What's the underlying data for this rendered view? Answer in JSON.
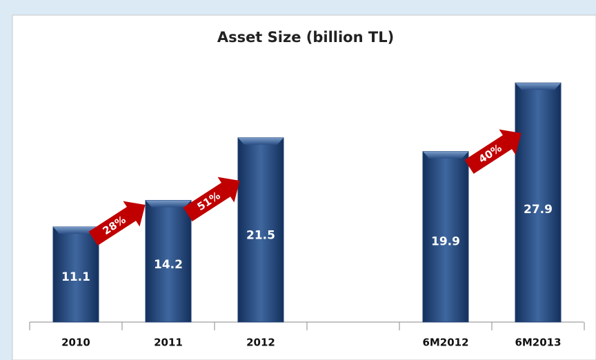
{
  "chart_data": {
    "type": "bar",
    "title": "Asset Size (billion TL)",
    "categories": [
      "2010",
      "2011",
      "2012",
      null,
      "6M2012",
      "6M2013"
    ],
    "values": [
      11.1,
      14.2,
      21.5,
      null,
      19.9,
      27.9
    ],
    "color": "#1f3f72",
    "annotations": [
      {
        "text": "28%"
      },
      {
        "text": "51%"
      },
      {
        "text": "40%"
      }
    ],
    "annotation_color": "#c00000"
  }
}
